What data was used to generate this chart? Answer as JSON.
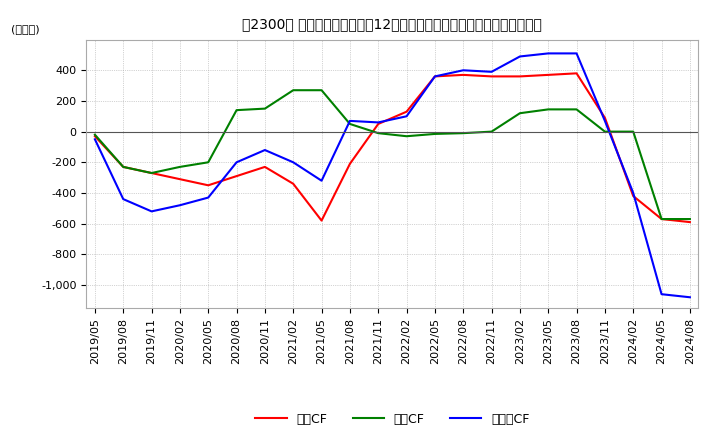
{
  "title": "　2300、 キャッシュフローの12か月移動合計の対前年同期増減額の推移",
  "ylabel": "(百万円)",
  "ylim": [
    -1150,
    600
  ],
  "yticks": [
    -1000,
    -800,
    -600,
    -400,
    -200,
    0,
    200,
    400
  ],
  "legend_labels": [
    "営業CF",
    "投資CF",
    "フリーCF"
  ],
  "colors": {
    "eigyo": "#ff0000",
    "toshi": "#008000",
    "free": "#0000ff"
  },
  "dates": [
    "2019/05",
    "2019/08",
    "2019/11",
    "2020/02",
    "2020/05",
    "2020/08",
    "2020/11",
    "2021/02",
    "2021/05",
    "2021/08",
    "2021/11",
    "2022/02",
    "2022/05",
    "2022/08",
    "2022/11",
    "2023/02",
    "2023/05",
    "2023/08",
    "2023/11",
    "2024/02",
    "2024/05",
    "2024/08"
  ],
  "eigyo_cf": [
    -30,
    -230,
    -270,
    -310,
    -350,
    -290,
    -230,
    -340,
    -580,
    -210,
    50,
    130,
    360,
    370,
    360,
    360,
    370,
    380,
    90,
    -420,
    -570,
    -590
  ],
  "toshi_cf": [
    -20,
    -230,
    -270,
    -230,
    -200,
    140,
    150,
    270,
    270,
    50,
    -10,
    -30,
    -15,
    -10,
    0,
    120,
    145,
    145,
    0,
    0,
    -570,
    -570
  ],
  "free_cf": [
    -50,
    -440,
    -520,
    -480,
    -430,
    -200,
    -120,
    -200,
    -320,
    70,
    60,
    100,
    360,
    400,
    390,
    490,
    510,
    510,
    70,
    -400,
    -1060,
    -1080
  ],
  "grid_color": "#aaaaaa",
  "background_color": "#ffffff"
}
